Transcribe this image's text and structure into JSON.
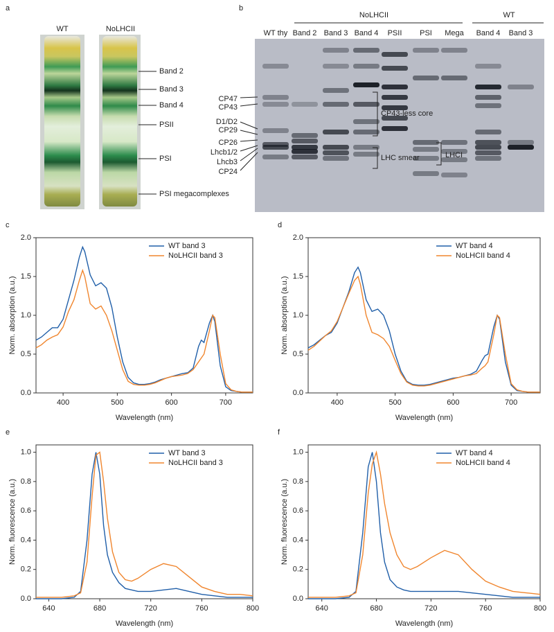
{
  "panel_a": {
    "letter": "a",
    "tubes": [
      "WT",
      "NoLHCII"
    ],
    "bands": [
      "Band 2",
      "Band 3",
      "Band 4",
      "PSII",
      "PSI",
      "PSI megacomplexes"
    ]
  },
  "panel_b": {
    "letter": "b",
    "groups": [
      "NoLHCII",
      "WT"
    ],
    "lanes": [
      "WT thy",
      "Band 2",
      "Band 3",
      "Band 4",
      "PSII",
      "PSI",
      "Mega",
      "Band 4",
      "Band 3"
    ],
    "proteins": [
      "CP47",
      "CP43",
      "D1/D2",
      "CP29",
      "CP26",
      "Lhcb1/2",
      "Lhcb3",
      "CP24"
    ],
    "annotations": [
      "CP43-less core",
      "LHC smear",
      "LHCI"
    ]
  },
  "chart_data": [
    {
      "type": "line",
      "panel_label": "c",
      "x_label": "Wavelength (nm)",
      "y_label": "Norm. absorption (a.u.)",
      "legend": "upper right",
      "x": [
        350,
        360,
        370,
        380,
        390,
        400,
        410,
        420,
        430,
        436,
        440,
        450,
        460,
        470,
        480,
        490,
        500,
        510,
        520,
        530,
        540,
        550,
        560,
        570,
        580,
        590,
        600,
        610,
        620,
        630,
        640,
        650,
        655,
        660,
        670,
        676,
        680,
        690,
        700,
        710,
        720,
        730,
        740,
        750
      ],
      "series": [
        {
          "name": "WT band 3",
          "color": "#1f5ea8",
          "values": [
            0.68,
            0.72,
            0.78,
            0.84,
            0.84,
            0.95,
            1.2,
            1.45,
            1.75,
            1.88,
            1.82,
            1.52,
            1.38,
            1.42,
            1.35,
            1.1,
            0.72,
            0.4,
            0.2,
            0.13,
            0.11,
            0.11,
            0.12,
            0.14,
            0.17,
            0.19,
            0.21,
            0.23,
            0.25,
            0.26,
            0.32,
            0.6,
            0.68,
            0.65,
            0.9,
            1.0,
            0.92,
            0.35,
            0.08,
            0.03,
            0.02,
            0.01,
            0.01,
            0.01
          ]
        },
        {
          "name": "NoLHCII band 3",
          "color": "#f0852d",
          "values": [
            0.58,
            0.62,
            0.68,
            0.72,
            0.75,
            0.85,
            1.05,
            1.2,
            1.45,
            1.58,
            1.5,
            1.15,
            1.08,
            1.12,
            1.0,
            0.8,
            0.55,
            0.3,
            0.15,
            0.11,
            0.1,
            0.1,
            0.11,
            0.13,
            0.16,
            0.19,
            0.21,
            0.22,
            0.23,
            0.25,
            0.3,
            0.4,
            0.45,
            0.5,
            0.8,
            1.0,
            0.97,
            0.5,
            0.12,
            0.04,
            0.02,
            0.01,
            0.01,
            0.01
          ]
        }
      ],
      "xlim": [
        350,
        750
      ],
      "xticks": [
        400,
        500,
        600,
        700
      ],
      "ylim": [
        0,
        2
      ],
      "yticks": [
        {
          "value": 0,
          "label": "0.0"
        },
        0.5,
        {
          "value": 1,
          "label": "1.0"
        },
        1.5,
        {
          "value": 2,
          "label": "2.0"
        }
      ]
    },
    {
      "type": "line",
      "panel_label": "d",
      "x_label": "Wavelength (nm)",
      "y_label": "Norm. absorption (a.u.)",
      "legend": "upper right",
      "x": [
        350,
        360,
        370,
        380,
        390,
        400,
        410,
        420,
        430,
        436,
        440,
        450,
        460,
        470,
        480,
        490,
        500,
        510,
        520,
        530,
        540,
        550,
        560,
        570,
        580,
        590,
        600,
        610,
        620,
        630,
        640,
        650,
        655,
        660,
        670,
        676,
        680,
        690,
        700,
        710,
        720,
        730,
        740,
        750
      ],
      "series": [
        {
          "name": "WT band 4",
          "color": "#1f5ea8",
          "values": [
            0.58,
            0.62,
            0.68,
            0.74,
            0.78,
            0.9,
            1.1,
            1.3,
            1.55,
            1.62,
            1.55,
            1.2,
            1.05,
            1.08,
            1.0,
            0.8,
            0.5,
            0.28,
            0.15,
            0.11,
            0.1,
            0.1,
            0.11,
            0.13,
            0.15,
            0.17,
            0.19,
            0.2,
            0.22,
            0.24,
            0.28,
            0.42,
            0.48,
            0.5,
            0.85,
            1.0,
            0.95,
            0.4,
            0.1,
            0.03,
            0.02,
            0.01,
            0.01,
            0.01
          ]
        },
        {
          "name": "NoLHCII band 4",
          "color": "#f0852d",
          "values": [
            0.55,
            0.6,
            0.67,
            0.74,
            0.8,
            0.92,
            1.1,
            1.28,
            1.45,
            1.5,
            1.4,
            1.0,
            0.78,
            0.75,
            0.7,
            0.6,
            0.42,
            0.25,
            0.14,
            0.1,
            0.09,
            0.09,
            0.1,
            0.12,
            0.14,
            0.16,
            0.18,
            0.2,
            0.22,
            0.23,
            0.25,
            0.32,
            0.35,
            0.4,
            0.75,
            1.0,
            0.97,
            0.5,
            0.12,
            0.04,
            0.02,
            0.01,
            0.01,
            0.01
          ]
        }
      ],
      "xlim": [
        350,
        750
      ],
      "xticks": [
        400,
        500,
        600,
        700
      ],
      "ylim": [
        0,
        2
      ],
      "yticks": [
        {
          "value": 0,
          "label": "0.0"
        },
        0.5,
        {
          "value": 1,
          "label": "1.0"
        },
        1.5,
        {
          "value": 2,
          "label": "2.0"
        }
      ]
    },
    {
      "type": "line",
      "panel_label": "e",
      "x_label": "Wavelength (nm)",
      "y_label": "Norm. fluorescence (a.u.)",
      "legend": "upper right",
      "x": [
        630,
        640,
        650,
        660,
        665,
        670,
        674,
        677,
        680,
        683,
        686,
        690,
        695,
        700,
        705,
        710,
        720,
        730,
        740,
        750,
        760,
        770,
        780,
        790,
        800
      ],
      "series": [
        {
          "name": "WT band 3",
          "color": "#1f5ea8",
          "values": [
            0,
            0,
            0,
            0.01,
            0.05,
            0.4,
            0.85,
            1.0,
            0.85,
            0.5,
            0.3,
            0.18,
            0.11,
            0.07,
            0.06,
            0.05,
            0.05,
            0.06,
            0.07,
            0.05,
            0.03,
            0.02,
            0.01,
            0.01,
            0.01
          ]
        },
        {
          "name": "NoLHCII band 3",
          "color": "#f0852d",
          "values": [
            0.01,
            0.01,
            0.01,
            0.02,
            0.04,
            0.25,
            0.7,
            0.98,
            1.0,
            0.8,
            0.55,
            0.32,
            0.18,
            0.13,
            0.12,
            0.14,
            0.2,
            0.24,
            0.22,
            0.15,
            0.08,
            0.05,
            0.03,
            0.03,
            0.02
          ]
        }
      ],
      "xlim": [
        630,
        800
      ],
      "xticks": [
        640,
        680,
        720,
        760,
        800
      ],
      "ylim": [
        0,
        1.05
      ],
      "yticks": [
        {
          "value": 0,
          "label": "0.0"
        },
        0.2,
        0.4,
        0.6,
        0.8,
        {
          "value": 1,
          "label": "1.0"
        }
      ]
    },
    {
      "type": "line",
      "panel_label": "f",
      "x_label": "Wavelength (nm)",
      "y_label": "Norm. fluorescence (a.u.)",
      "legend": "upper right",
      "x": [
        630,
        640,
        650,
        660,
        665,
        670,
        674,
        677,
        680,
        683,
        686,
        690,
        695,
        700,
        705,
        710,
        720,
        730,
        740,
        750,
        760,
        770,
        780,
        790,
        800
      ],
      "series": [
        {
          "name": "WT band 4",
          "color": "#1f5ea8",
          "values": [
            0,
            0,
            0,
            0.01,
            0.05,
            0.45,
            0.9,
            1.0,
            0.8,
            0.45,
            0.25,
            0.13,
            0.08,
            0.06,
            0.05,
            0.05,
            0.05,
            0.05,
            0.05,
            0.04,
            0.03,
            0.02,
            0.01,
            0.01,
            0.01
          ]
        },
        {
          "name": "NoLHCII band 4",
          "color": "#f0852d",
          "values": [
            0.01,
            0.01,
            0.01,
            0.02,
            0.04,
            0.3,
            0.72,
            0.92,
            1.0,
            0.85,
            0.65,
            0.45,
            0.3,
            0.22,
            0.2,
            0.22,
            0.28,
            0.33,
            0.3,
            0.2,
            0.12,
            0.08,
            0.05,
            0.04,
            0.03
          ]
        }
      ],
      "xlim": [
        630,
        800
      ],
      "xticks": [
        640,
        680,
        720,
        760,
        800
      ],
      "ylim": [
        0,
        1.05
      ],
      "yticks": [
        {
          "value": 0,
          "label": "0.0"
        },
        0.2,
        0.4,
        0.6,
        0.8,
        {
          "value": 1,
          "label": "1.0"
        }
      ]
    }
  ]
}
